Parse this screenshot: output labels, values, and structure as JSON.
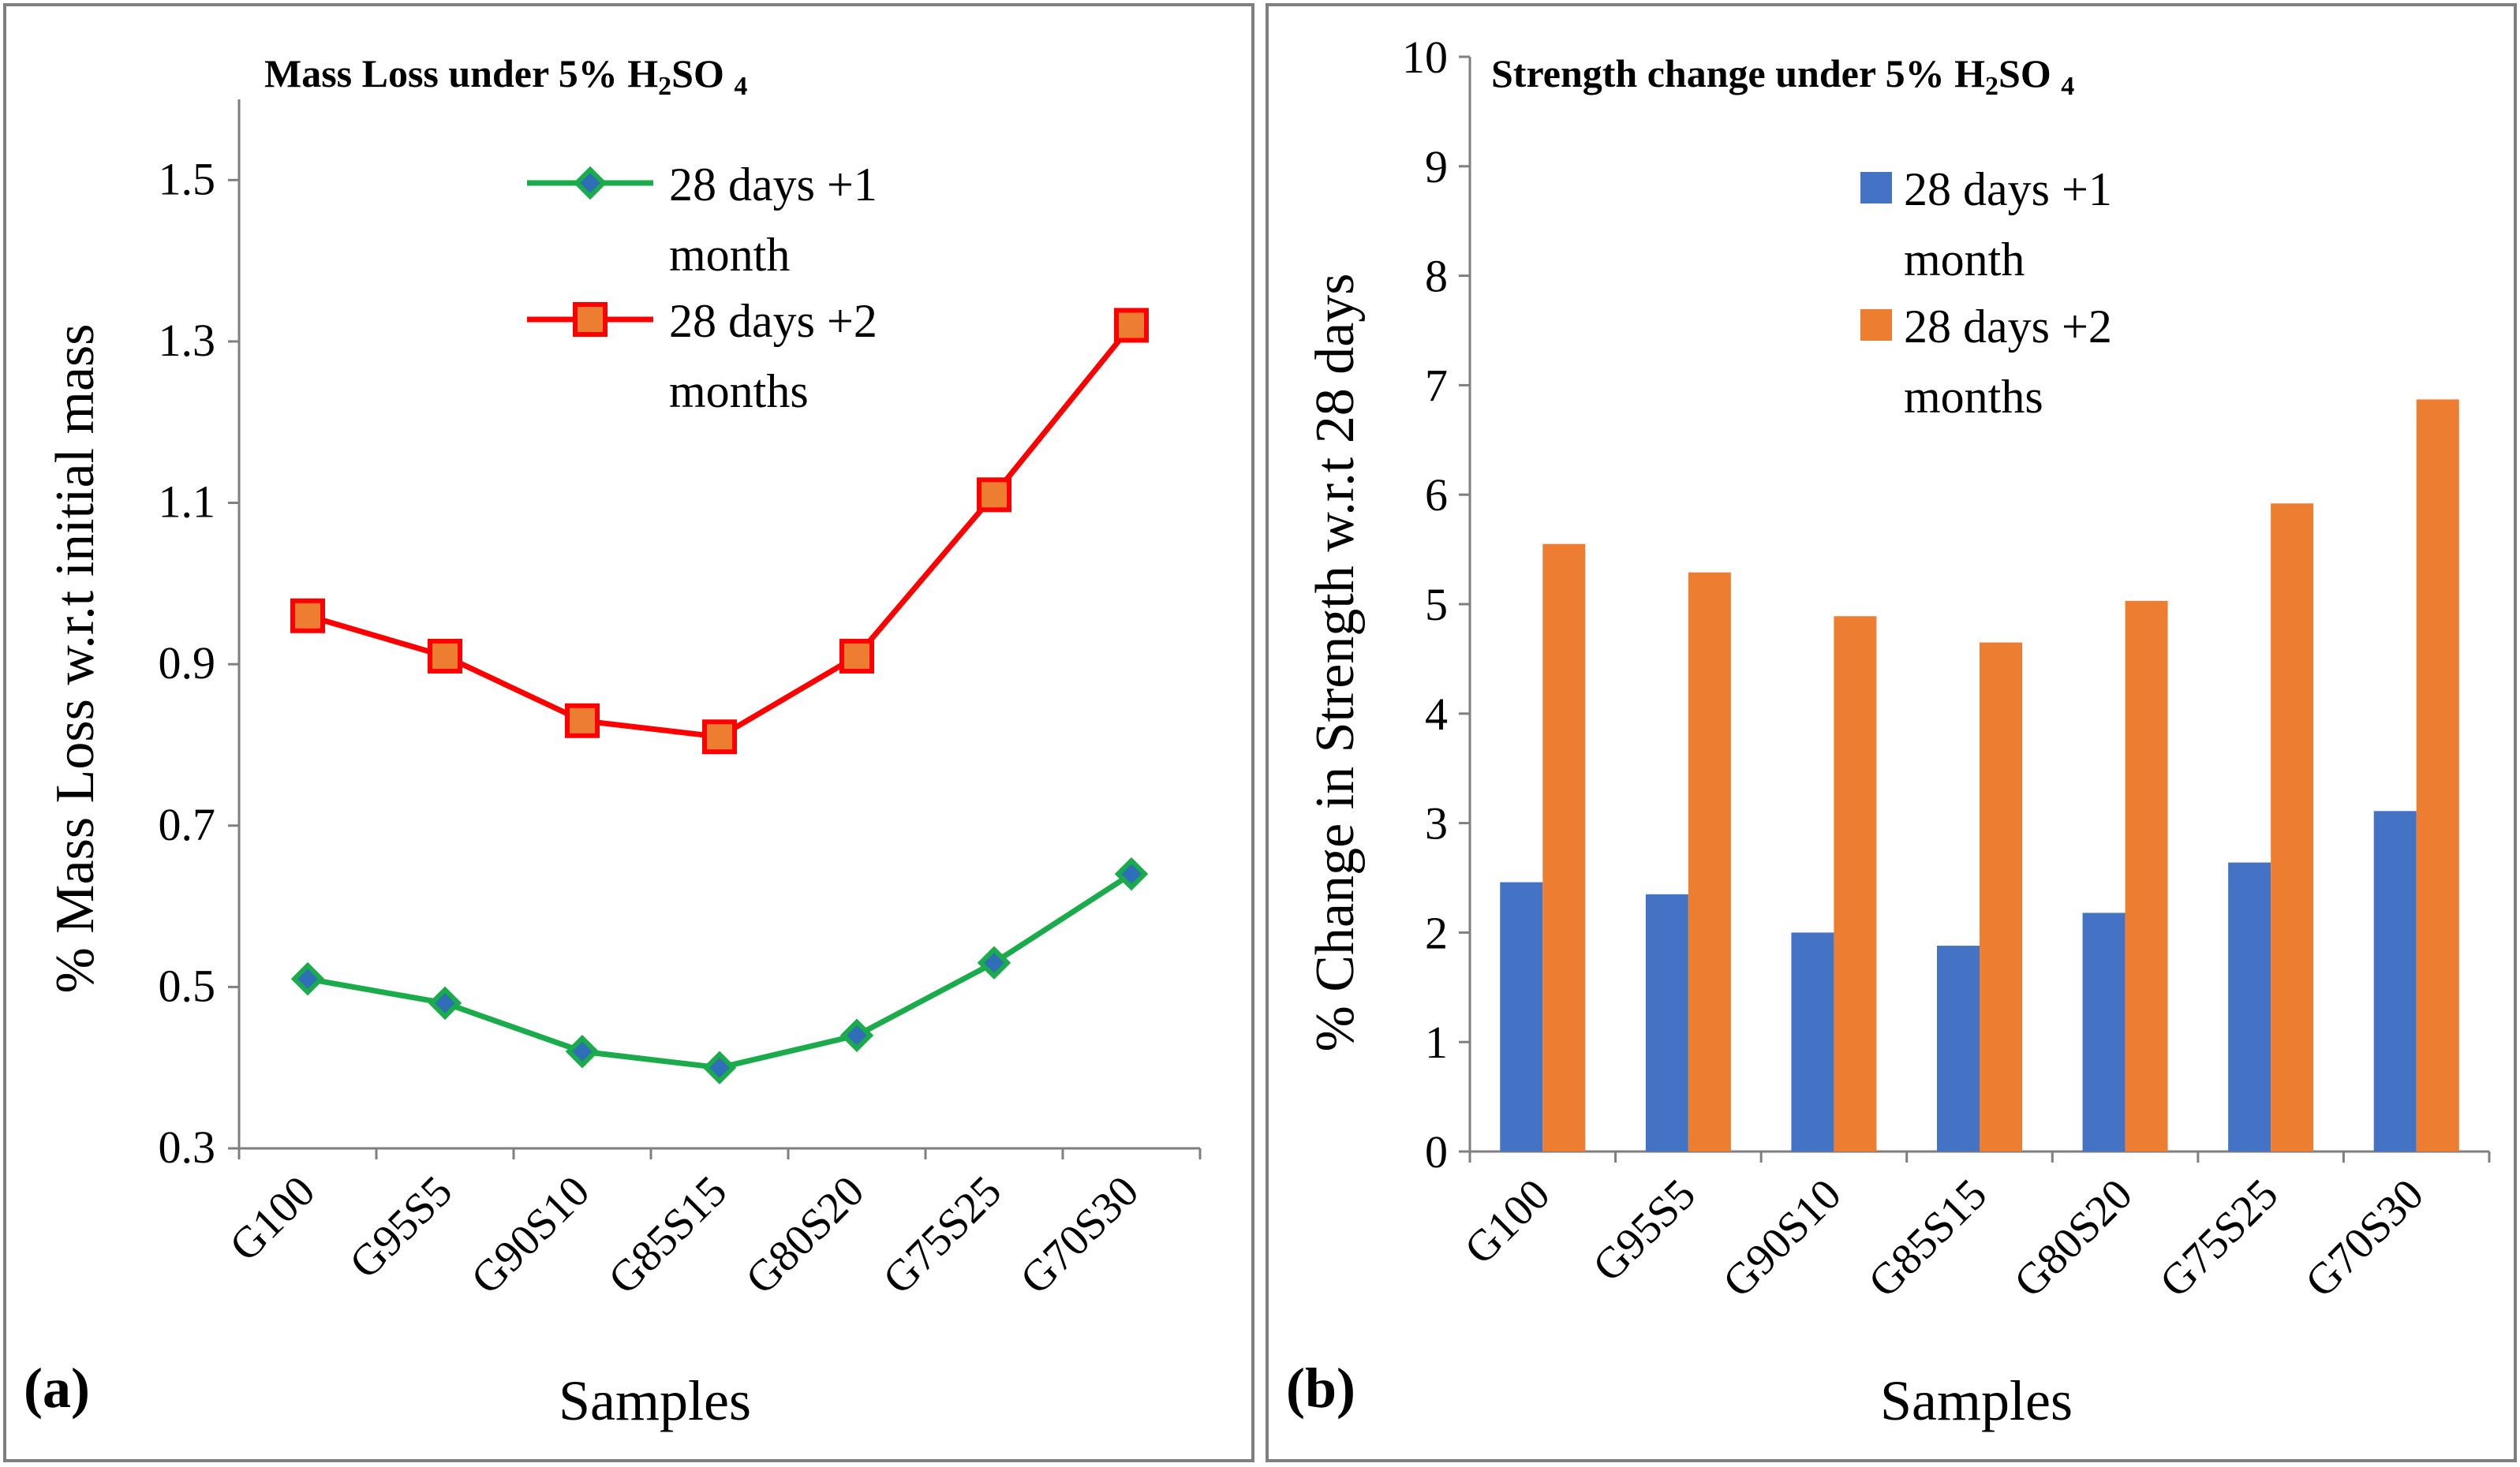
{
  "chart_data": [
    {
      "type": "line",
      "panel_label": "(a)",
      "title": "Mass Loss under 5% H2SO 4",
      "title_parts": {
        "main": "Mass Loss under 5% H",
        "sub": "2",
        "rest": "SO ",
        "sub2": "4"
      },
      "xlabel": "Samples",
      "ylabel": "% Mass Loss  w.r.t initial mass",
      "ylim": [
        0.3,
        1.6
      ],
      "yticks": [
        0.3,
        0.5,
        0.7,
        0.9,
        1.1,
        1.3,
        1.5
      ],
      "ytick_labels": [
        "0.3",
        "0.5",
        "0.7",
        "0.9",
        "1.1",
        "1.3",
        "1.5"
      ],
      "categories": [
        "G100",
        "G95S5",
        "G90S10",
        "G85S15",
        "G80S20",
        "G75S25",
        "G70S30"
      ],
      "legend_position": "top-right",
      "series": [
        {
          "name": "28 days +1 month",
          "legend_lines": [
            "28 days +1",
            "month"
          ],
          "values": [
            0.51,
            0.48,
            0.42,
            0.4,
            0.44,
            0.53,
            0.64
          ],
          "line_color": "#1aab4b",
          "marker": "diamond",
          "marker_fill": "#2e6fb8",
          "marker_edge": "#1aab4b"
        },
        {
          "name": "28 days +2 months",
          "legend_lines": [
            "28 days +2",
            "months"
          ],
          "values": [
            0.96,
            0.91,
            0.83,
            0.81,
            0.91,
            1.11,
            1.32
          ],
          "line_color": "#ff0000",
          "marker": "square",
          "marker_fill": "#ed7d31",
          "marker_edge": "#ff0000"
        }
      ]
    },
    {
      "type": "bar",
      "panel_label": "(b)",
      "title": "Strength change under 5% H2SO 4",
      "title_parts": {
        "main": "Strength change under 5% H",
        "sub": "2",
        "rest": "SO ",
        "sub2": "4"
      },
      "xlabel": "Samples",
      "ylabel": "% Change in Strength w.r.t 28 days",
      "ylim": [
        0,
        10
      ],
      "yticks": [
        0,
        1,
        2,
        3,
        4,
        5,
        6,
        7,
        8,
        9,
        10
      ],
      "ytick_labels": [
        "0",
        "1",
        "2",
        "3",
        "4",
        "5",
        "6",
        "7",
        "8",
        "9",
        "10"
      ],
      "categories": [
        "G100",
        "G95S5",
        "G90S10",
        "G85S15",
        "G80S20",
        "G75S25",
        "G70S30"
      ],
      "legend_position": "top-right",
      "series": [
        {
          "name": "28 days +1 month",
          "legend_lines": [
            "28 days +1",
            "month"
          ],
          "values": [
            2.46,
            2.35,
            2.0,
            1.88,
            2.18,
            2.64,
            3.11
          ],
          "color": "#4472c4"
        },
        {
          "name": "28 days +2 months",
          "legend_lines": [
            "28 days +2",
            "months"
          ],
          "values": [
            5.55,
            5.29,
            4.89,
            4.65,
            5.03,
            5.92,
            6.87
          ],
          "color": "#ed7d31"
        }
      ]
    }
  ]
}
